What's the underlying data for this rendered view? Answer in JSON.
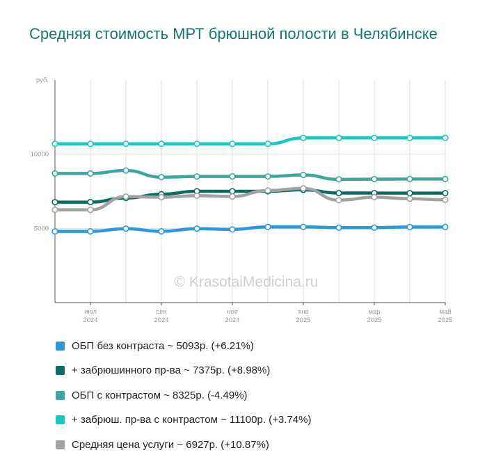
{
  "title": "Средняя стоимость МРТ брюшной полости в Челябинске",
  "watermark": "© KrasotaiMedicina.ru",
  "chart_data": {
    "type": "line",
    "y_unit_label": "руб.",
    "ylim": [
      0,
      15000
    ],
    "y_ticks": [
      5000,
      10000
    ],
    "grid": true,
    "x_ticks": [
      {
        "month": "июл",
        "year": "2024"
      },
      {
        "month": "сен",
        "year": "2024"
      },
      {
        "month": "ноя",
        "year": "2024"
      },
      {
        "month": "янв",
        "year": "2025"
      },
      {
        "month": "мар",
        "year": "2025"
      },
      {
        "month": "май",
        "year": "2025"
      }
    ],
    "points_count": 12,
    "legend_position": "bottom",
    "series": [
      {
        "name": "+ забрюш. пр-ва с контрастом ~ 11100р. (+3.74%)",
        "color": "#19c9be",
        "values": [
          10700,
          10700,
          10700,
          10700,
          10700,
          10700,
          10700,
          11100,
          11100,
          11100,
          11100,
          11100
        ]
      },
      {
        "name": "ОБП с контрастом ~ 8325р. (-4.49%)",
        "color": "#3aa89e",
        "values": [
          8700,
          8700,
          8900,
          8450,
          8500,
          8500,
          8500,
          8600,
          8300,
          8320,
          8325,
          8325
        ]
      },
      {
        "name": "+ забрюшинного пр-ва ~ 7375р. (+8.98%)",
        "color": "#0a6d63",
        "values": [
          6770,
          6770,
          7050,
          7300,
          7500,
          7500,
          7500,
          7600,
          7380,
          7380,
          7375,
          7375
        ]
      },
      {
        "name": "Средняя цена услуги ~ 6927р. (+10.87%)",
        "color": "#a2a2a2",
        "values": [
          6250,
          6250,
          7150,
          7100,
          7200,
          7150,
          7550,
          7700,
          6900,
          7100,
          7000,
          6927
        ]
      },
      {
        "name": "ОБП без контраста ~ 5093р. (+6.21%)",
        "color": "#2a98dc",
        "values": [
          4800,
          4800,
          4980,
          4800,
          4980,
          4930,
          5100,
          5100,
          5050,
          5050,
          5093,
          5093
        ]
      }
    ]
  },
  "legend": [
    {
      "label": "ОБП без контраста ~ 5093р. (+6.21%)",
      "color": "#2a98dc"
    },
    {
      "label": "+ забрюшинного пр-ва ~ 7375р. (+8.98%)",
      "color": "#0a6d63"
    },
    {
      "label": "ОБП с контрастом ~ 8325р. (-4.49%)",
      "color": "#3aa89e"
    },
    {
      "label": "+ забрюш. пр-ва с контрастом ~ 11100р. (+3.74%)",
      "color": "#19c9be"
    },
    {
      "label": "Средняя цена услуги ~ 6927р. (+10.87%)",
      "color": "#a2a2a2"
    }
  ]
}
